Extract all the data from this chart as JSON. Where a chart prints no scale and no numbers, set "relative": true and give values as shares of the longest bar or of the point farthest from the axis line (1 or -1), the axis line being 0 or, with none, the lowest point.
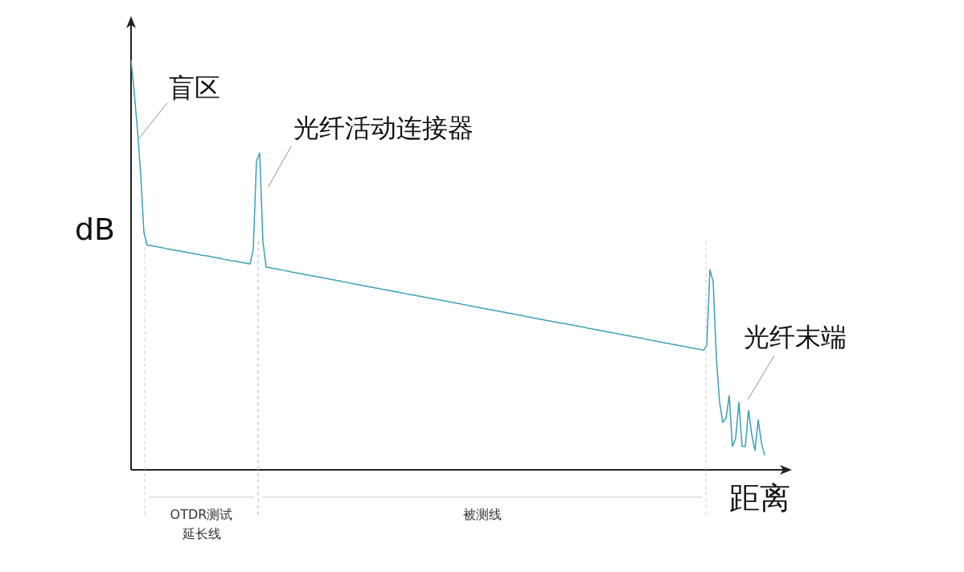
{
  "chart_data": {
    "type": "line",
    "relative": true,
    "xlabel": "距离",
    "ylabel": "dB",
    "line_style": "solid",
    "categories": [
      null,
      null,
      null,
      null,
      null,
      null,
      null,
      null,
      null,
      null,
      null,
      null,
      null,
      null,
      null,
      null,
      null,
      null,
      null,
      null,
      null,
      null,
      null,
      null,
      null,
      null,
      null,
      null,
      null,
      null,
      null,
      null,
      null,
      null,
      null,
      null,
      null,
      null,
      null,
      null,
      null,
      null,
      null,
      null,
      null,
      null,
      null,
      null,
      null,
      null,
      null,
      null,
      null,
      null,
      null,
      null,
      null,
      null,
      null,
      null,
      null,
      null,
      null,
      null,
      null,
      null,
      null,
      null,
      null,
      null,
      null,
      null,
      null,
      null,
      null,
      null,
      null,
      null,
      null,
      null,
      null,
      null,
      null,
      null,
      null,
      null,
      null,
      null,
      null,
      null,
      null,
      null,
      null,
      null,
      null,
      null,
      null,
      null,
      null,
      null,
      null,
      null,
      null,
      null,
      null,
      null,
      null,
      null,
      null,
      null,
      null,
      null,
      null,
      null,
      null,
      null,
      null,
      null,
      null,
      null,
      null,
      null,
      null,
      null,
      null,
      null,
      null,
      null,
      null,
      null,
      null,
      null,
      null,
      null,
      null,
      null,
      null,
      null,
      null,
      null,
      null,
      null,
      null,
      null,
      null,
      null,
      null,
      null,
      null,
      null,
      null,
      null,
      null,
      null,
      null,
      null,
      null,
      null,
      null,
      null,
      null,
      null,
      null,
      null,
      null,
      null,
      null,
      null,
      null,
      null,
      null,
      null,
      null,
      null,
      null,
      null,
      null,
      null,
      null,
      null,
      null,
      null,
      null,
      null,
      null,
      null,
      null,
      null,
      null,
      null,
      null,
      null,
      null,
      null,
      null,
      null,
      null,
      null
    ],
    "series": [
      {
        "color": "#3a9fb5",
        "values": [
          1.0,
          0.92,
          0.83,
          0.72,
          0.58,
          0.549,
          0.548,
          0.546,
          0.545,
          0.543,
          0.542,
          0.54,
          0.539,
          0.537,
          0.536,
          0.535,
          0.533,
          0.532,
          0.53,
          0.529,
          0.527,
          0.526,
          0.524,
          0.523,
          0.522,
          0.52,
          0.519,
          0.517,
          0.516,
          0.514,
          0.513,
          0.511,
          0.51,
          0.509,
          0.507,
          0.506,
          0.504,
          0.503,
          0.538,
          0.754,
          0.774,
          0.558,
          0.495,
          0.494,
          0.492,
          0.491,
          0.489,
          0.488,
          0.486,
          0.485,
          0.483,
          0.482,
          0.48,
          0.479,
          0.477,
          0.476,
          0.474,
          0.473,
          0.471,
          0.47,
          0.468,
          0.467,
          0.465,
          0.464,
          0.462,
          0.461,
          0.459,
          0.458,
          0.456,
          0.455,
          0.453,
          0.452,
          0.45,
          0.449,
          0.447,
          0.446,
          0.444,
          0.443,
          0.441,
          0.44,
          0.438,
          0.437,
          0.435,
          0.434,
          0.432,
          0.431,
          0.429,
          0.428,
          0.427,
          0.425,
          0.424,
          0.422,
          0.421,
          0.419,
          0.418,
          0.416,
          0.415,
          0.413,
          0.412,
          0.41,
          0.409,
          0.407,
          0.406,
          0.404,
          0.403,
          0.401,
          0.4,
          0.398,
          0.397,
          0.395,
          0.394,
          0.392,
          0.391,
          0.389,
          0.388,
          0.386,
          0.385,
          0.383,
          0.382,
          0.38,
          0.379,
          0.377,
          0.376,
          0.374,
          0.373,
          0.371,
          0.37,
          0.368,
          0.367,
          0.365,
          0.364,
          0.362,
          0.361,
          0.359,
          0.358,
          0.357,
          0.355,
          0.354,
          0.352,
          0.351,
          0.349,
          0.348,
          0.346,
          0.345,
          0.343,
          0.342,
          0.34,
          0.339,
          0.337,
          0.336,
          0.334,
          0.333,
          0.331,
          0.33,
          0.328,
          0.327,
          0.325,
          0.324,
          0.322,
          0.321,
          0.319,
          0.318,
          0.316,
          0.315,
          0.313,
          0.312,
          0.31,
          0.309,
          0.307,
          0.306,
          0.304,
          0.303,
          0.301,
          0.3,
          0.298,
          0.297,
          0.295,
          0.294,
          0.292,
          0.303,
          0.489,
          0.46,
          0.273,
          0.165,
          0.116,
          0.126,
          0.181,
          0.057,
          0.077,
          0.165,
          0.057,
          0.057,
          0.145,
          0.086,
          0.047,
          0.122,
          0.067,
          0.035
        ]
      }
    ],
    "annotations": [
      "盲区",
      "光纤活动连接器",
      "光纤末端",
      "OTDR测试延长线",
      "被测线"
    ]
  }
}
